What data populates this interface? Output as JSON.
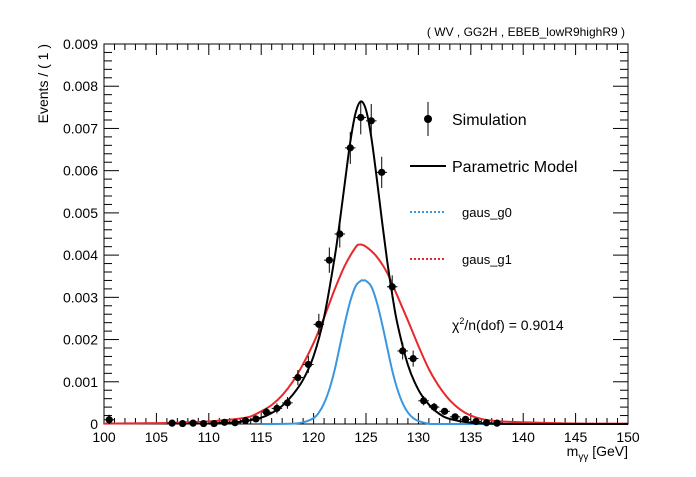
{
  "chart_data": {
    "type": "line",
    "title": "( WV , GG2H , EBEB_lowR9highR9 )",
    "xlabel": "m_γγ [GeV]",
    "xlabel_main": "m",
    "xlabel_sub": "γγ",
    "xlabel_unit": " [GeV]",
    "ylabel": "Events / ( 1 )",
    "xlim": [
      100,
      150
    ],
    "ylim": [
      0,
      0.009
    ],
    "x_ticks": [
      "100",
      "105",
      "110",
      "115",
      "120",
      "125",
      "130",
      "135",
      "140",
      "145",
      "150"
    ],
    "y_ticks": [
      "0",
      "0.001",
      "0.002",
      "0.003",
      "0.004",
      "0.005",
      "0.006",
      "0.007",
      "0.008",
      "0.009"
    ],
    "legend_position": "right",
    "legend": [
      {
        "label": "Simulation",
        "style": "marker",
        "color": "#000000"
      },
      {
        "label": "Parametric Model",
        "style": "solid",
        "color": "#000000"
      },
      {
        "label": "gaus_g0",
        "style": "dashed",
        "color": "#3a96e0"
      },
      {
        "label": "gaus_g1",
        "style": "dashed",
        "color": "#e8282a"
      }
    ],
    "annotation": {
      "prefix": "χ",
      "sup": "2",
      "rest": "/n(dof) = 0.9014"
    },
    "series": [
      {
        "name": "Simulation",
        "kind": "points",
        "color": "#000000",
        "x": [
          100.5,
          106.5,
          107.5,
          108.5,
          109.5,
          110.5,
          111.5,
          112.5,
          113.5,
          114.5,
          115.5,
          116.5,
          117.5,
          118.5,
          119.5,
          120.5,
          121.5,
          122.5,
          123.5,
          124.5,
          125.5,
          126.5,
          127.5,
          128.5,
          129.5,
          130.5,
          131.5,
          132.5,
          133.5,
          134.5,
          135.5,
          136.5,
          137.5
        ],
        "y": [
          0.0001,
          2e-05,
          1e-05,
          2e-05,
          1e-05,
          1e-05,
          4e-05,
          3e-05,
          8e-05,
          0.00012,
          0.00028,
          0.00037,
          0.0005,
          0.0011,
          0.00141,
          0.00236,
          0.00388,
          0.0045,
          0.00654,
          0.00726,
          0.00718,
          0.00596,
          0.00325,
          0.00173,
          0.00155,
          0.00055,
          0.0004,
          0.0003,
          0.00017,
          0.00011,
          6e-05,
          3e-05,
          2e-05
        ],
        "yerr": [
          0.00012,
          4e-05,
          3e-05,
          4e-05,
          3e-05,
          3e-05,
          5e-05,
          4e-05,
          6e-05,
          8e-05,
          0.0001,
          0.00012,
          0.00014,
          0.00018,
          0.0002,
          0.00025,
          0.0003,
          0.00032,
          0.00038,
          0.0004,
          0.0004,
          0.00037,
          0.00027,
          0.0002,
          0.00019,
          0.00011,
          0.0001,
          8e-05,
          6e-05,
          5e-05,
          4e-05,
          3e-05,
          3e-05
        ]
      },
      {
        "name": "Parametric Model",
        "kind": "curve",
        "color": "#000000",
        "x": [
          110,
          113,
          115,
          116,
          117,
          118,
          119,
          120,
          121,
          122,
          122.5,
          123,
          123.5,
          124,
          124.5,
          125,
          125.5,
          126,
          126.5,
          127,
          127.5,
          128,
          129,
          130,
          131,
          132,
          133,
          135,
          137,
          140,
          150
        ],
        "y": [
          1e-05,
          5e-05,
          0.00015,
          0.00026,
          0.00043,
          0.00069,
          0.00105,
          0.00161,
          0.00253,
          0.00393,
          0.0048,
          0.00575,
          0.00668,
          0.00736,
          0.00764,
          0.00744,
          0.0068,
          0.00587,
          0.00486,
          0.0039,
          0.00307,
          0.00237,
          0.0014,
          0.00081,
          0.00046,
          0.00024,
          0.00012,
          3e-05,
          1e-05,
          0,
          0
        ]
      },
      {
        "name": "gaus_g0",
        "kind": "curve",
        "color": "#3a96e0",
        "x": [
          115,
          118,
          119,
          120,
          120.5,
          121,
          121.5,
          122,
          122.5,
          123,
          123.5,
          124,
          124.5,
          124.8,
          125,
          125.5,
          126,
          126.5,
          127,
          127.5,
          128,
          128.5,
          129,
          129.5,
          130,
          131,
          133,
          150
        ],
        "y": [
          0,
          1e-05,
          4e-05,
          0.00014,
          0.00027,
          0.00049,
          0.00082,
          0.00127,
          0.00184,
          0.00241,
          0.00291,
          0.00326,
          0.00339,
          0.0034,
          0.00339,
          0.00326,
          0.00291,
          0.00241,
          0.00184,
          0.00127,
          0.00082,
          0.00049,
          0.00027,
          0.00014,
          7e-05,
          1e-05,
          0,
          0
        ]
      },
      {
        "name": "gaus_g1",
        "kind": "curve",
        "color": "#e8282a",
        "x": [
          100,
          105,
          108,
          110,
          112,
          113,
          114,
          115,
          116,
          117,
          118,
          119,
          120,
          121,
          122,
          123,
          124,
          124.4,
          125,
          126,
          127,
          128,
          129,
          130,
          131,
          132,
          133,
          134,
          135,
          136,
          137,
          138,
          140,
          143,
          146,
          150
        ],
        "y": [
          1e-05,
          2e-05,
          4e-05,
          6e-05,
          0.0001,
          0.00013,
          0.00018,
          0.0003,
          0.00045,
          0.00068,
          0.001,
          0.00142,
          0.00192,
          0.00252,
          0.00318,
          0.00376,
          0.00418,
          0.00425,
          0.0042,
          0.00397,
          0.00359,
          0.00303,
          0.00245,
          0.00185,
          0.0013,
          0.00088,
          0.00056,
          0.00034,
          0.0002,
          0.00012,
          8e-05,
          6e-05,
          4e-05,
          2e-05,
          1e-05,
          1e-05
        ]
      }
    ]
  }
}
